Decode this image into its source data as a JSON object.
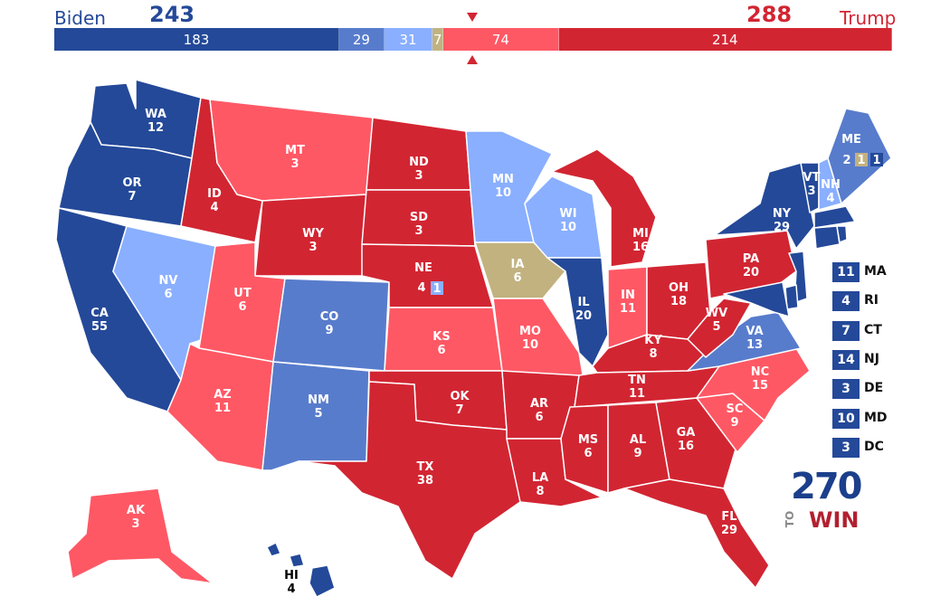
{
  "header": {
    "left_candidate": "Biden",
    "left_total": "243",
    "right_candidate": "Trump",
    "right_total": "288",
    "left_color": "#244999",
    "right_color": "#d22532"
  },
  "bar_segments": [
    {
      "value": 183,
      "label": "183",
      "color": "#244999"
    },
    {
      "value": 29,
      "label": "29",
      "color": "#587ccc"
    },
    {
      "value": 31,
      "label": "31",
      "color": "#8aafff"
    },
    {
      "value": 7,
      "label": "7",
      "color": "#c2b280"
    },
    {
      "value": 74,
      "label": "74",
      "color": "#ff5865"
    },
    {
      "value": 214,
      "label": "214",
      "color": "#d22532"
    }
  ],
  "colors": {
    "safe_d": "#244999",
    "likely_d": "#587ccc",
    "lean_d": "#8aafff",
    "tossup": "#c2b280",
    "lean_r": "#ff5865",
    "safe_r": "#d22532"
  },
  "states": {
    "WA": {
      "abbr": "WA",
      "ev": "12"
    },
    "OR": {
      "abbr": "OR",
      "ev": "7"
    },
    "CA": {
      "abbr": "CA",
      "ev": "55"
    },
    "ID": {
      "abbr": "ID",
      "ev": "4"
    },
    "NV": {
      "abbr": "NV",
      "ev": "6"
    },
    "MT": {
      "abbr": "MT",
      "ev": "3"
    },
    "WY": {
      "abbr": "WY",
      "ev": "3"
    },
    "UT": {
      "abbr": "UT",
      "ev": "6"
    },
    "AZ": {
      "abbr": "AZ",
      "ev": "11"
    },
    "CO": {
      "abbr": "CO",
      "ev": "9"
    },
    "NM": {
      "abbr": "NM",
      "ev": "5"
    },
    "ND": {
      "abbr": "ND",
      "ev": "3"
    },
    "SD": {
      "abbr": "SD",
      "ev": "3"
    },
    "NE": {
      "abbr": "NE",
      "ev": "4",
      "split": "1"
    },
    "KS": {
      "abbr": "KS",
      "ev": "6"
    },
    "OK": {
      "abbr": "OK",
      "ev": "7"
    },
    "TX": {
      "abbr": "TX",
      "ev": "38"
    },
    "MN": {
      "abbr": "MN",
      "ev": "10"
    },
    "IA": {
      "abbr": "IA",
      "ev": "6"
    },
    "MO": {
      "abbr": "MO",
      "ev": "10"
    },
    "AR": {
      "abbr": "AR",
      "ev": "6"
    },
    "LA": {
      "abbr": "LA",
      "ev": "8"
    },
    "WI": {
      "abbr": "WI",
      "ev": "10"
    },
    "IL": {
      "abbr": "IL",
      "ev": "20"
    },
    "MI": {
      "abbr": "MI",
      "ev": "16"
    },
    "IN": {
      "abbr": "IN",
      "ev": "11"
    },
    "OH": {
      "abbr": "OH",
      "ev": "18"
    },
    "KY": {
      "abbr": "KY",
      "ev": "8"
    },
    "TN": {
      "abbr": "TN",
      "ev": "11"
    },
    "MS": {
      "abbr": "MS",
      "ev": "6"
    },
    "AL": {
      "abbr": "AL",
      "ev": "9"
    },
    "GA": {
      "abbr": "GA",
      "ev": "16"
    },
    "FL": {
      "abbr": "FL",
      "ev": "29"
    },
    "SC": {
      "abbr": "SC",
      "ev": "9"
    },
    "NC": {
      "abbr": "NC",
      "ev": "15"
    },
    "VA": {
      "abbr": "VA",
      "ev": "13"
    },
    "WV": {
      "abbr": "WV",
      "ev": "5"
    },
    "PA": {
      "abbr": "PA",
      "ev": "20"
    },
    "NY": {
      "abbr": "NY",
      "ev": "29"
    },
    "VT": {
      "abbr": "VT",
      "ev": "3"
    },
    "NH": {
      "abbr": "NH",
      "ev": "4"
    },
    "ME": {
      "abbr": "ME",
      "ev": "2",
      "split1": "1",
      "split2": "1"
    },
    "AK": {
      "abbr": "AK",
      "ev": "3"
    },
    "HI": {
      "abbr": "HI",
      "ev": "4"
    }
  },
  "small_states": [
    {
      "abbr": "MA",
      "ev": "11",
      "color": "#244999"
    },
    {
      "abbr": "RI",
      "ev": "4",
      "color": "#244999"
    },
    {
      "abbr": "CT",
      "ev": "7",
      "color": "#244999"
    },
    {
      "abbr": "NJ",
      "ev": "14",
      "color": "#244999"
    },
    {
      "abbr": "DE",
      "ev": "3",
      "color": "#244999"
    },
    {
      "abbr": "MD",
      "ev": "10",
      "color": "#244999"
    },
    {
      "abbr": "DC",
      "ev": "3",
      "color": "#244999"
    }
  ],
  "logo": {
    "number": "270",
    "to": "TO",
    "win": "WIN"
  }
}
